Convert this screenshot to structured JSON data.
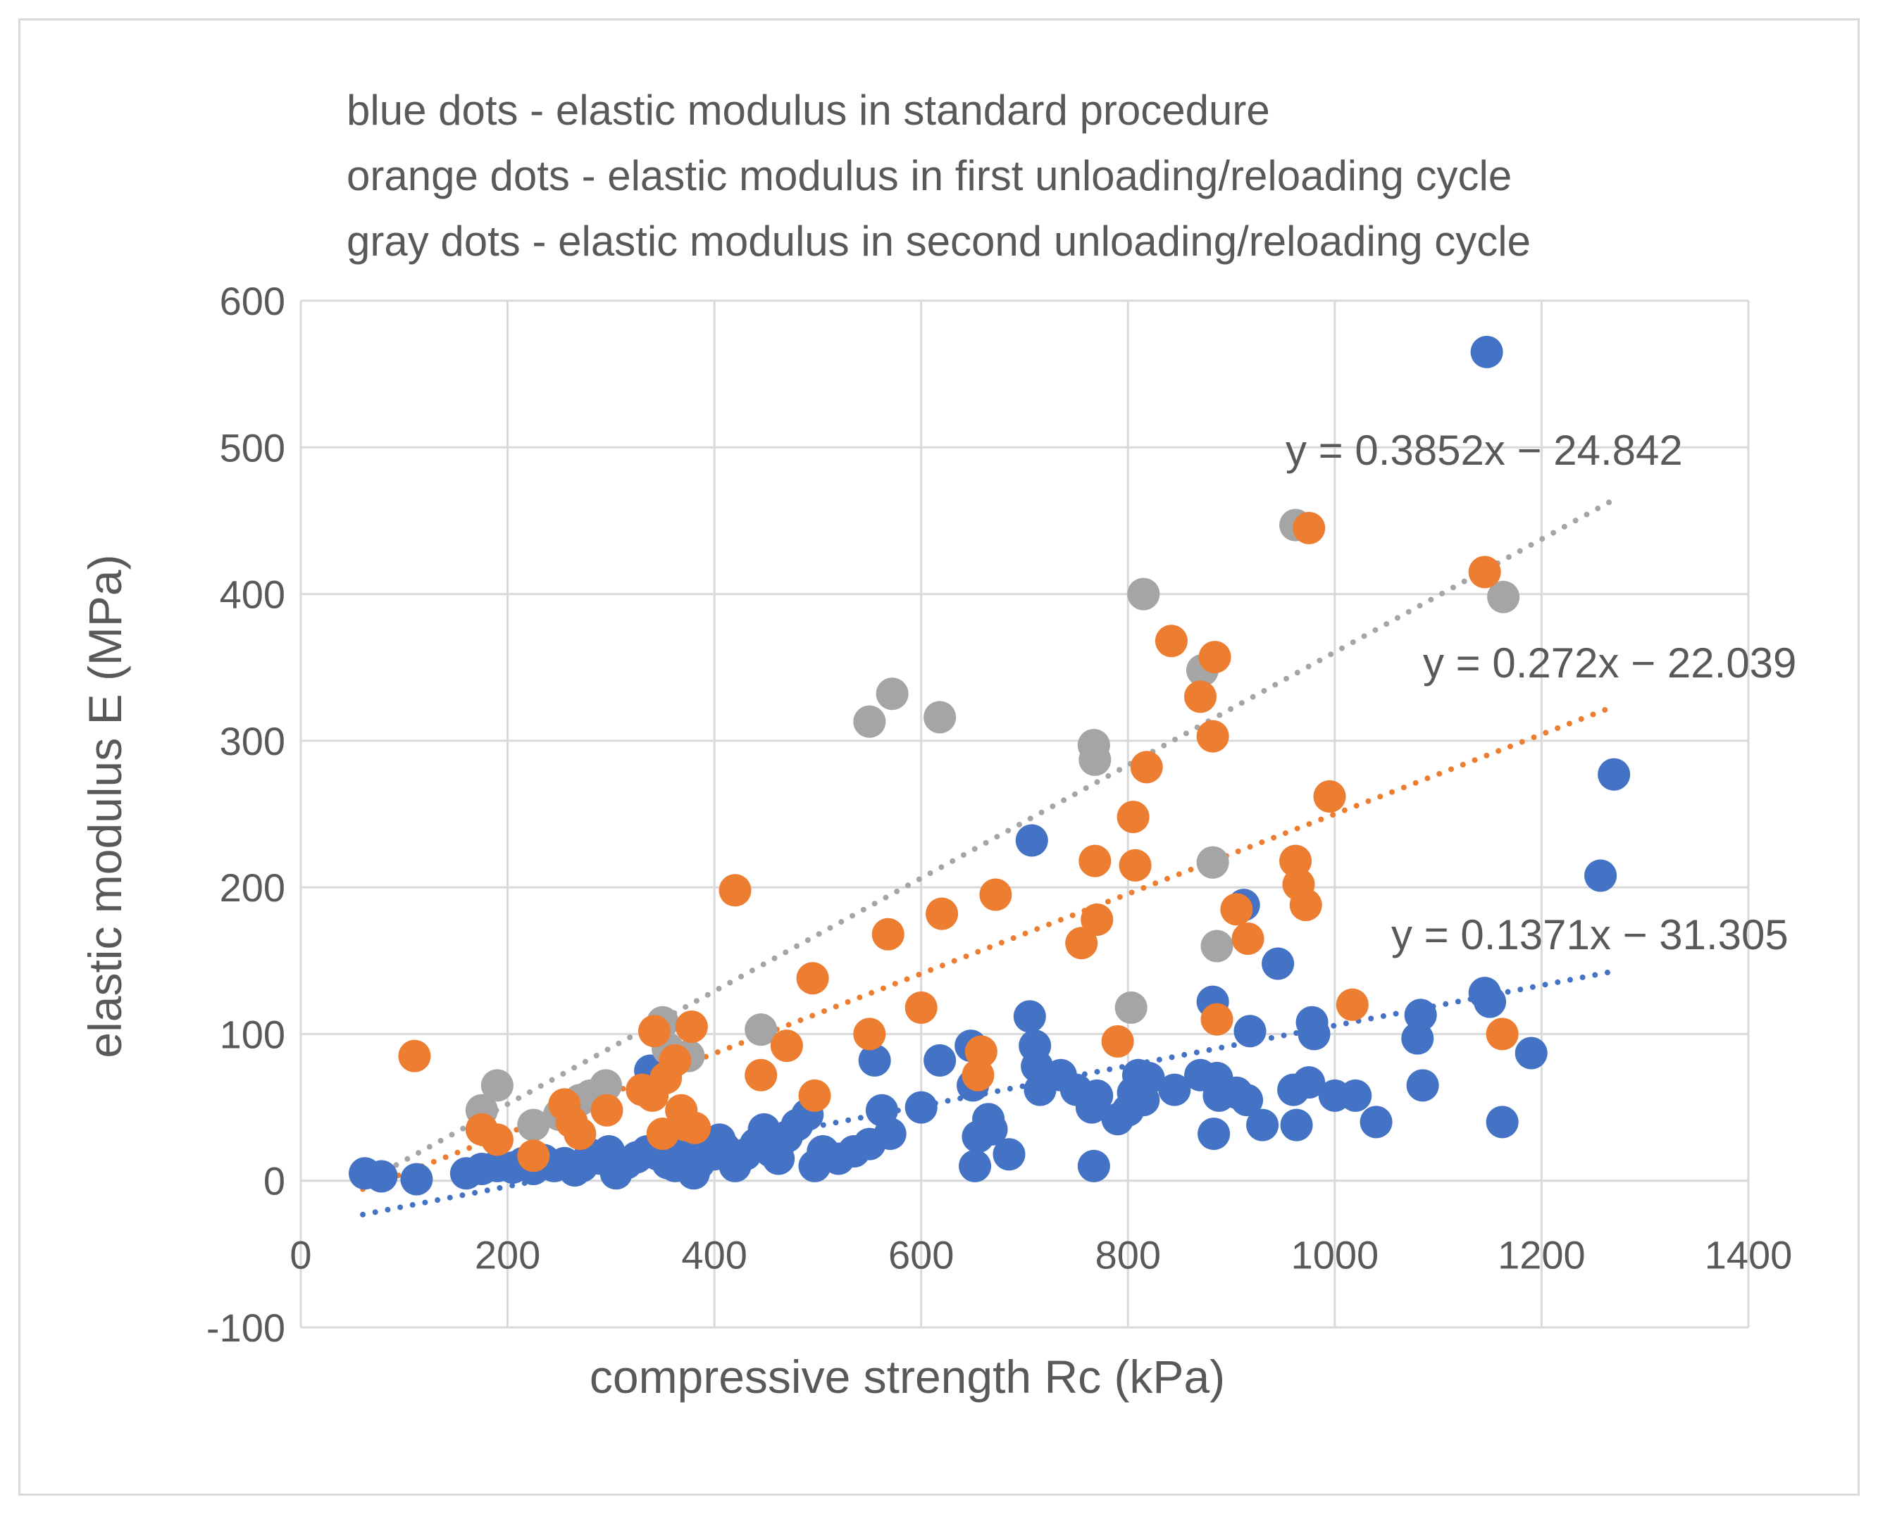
{
  "chart_data": {
    "type": "scatter",
    "annotations": [
      "blue dots - elastic modulus in standard procedure",
      "orange dots - elastic modulus in first unloading/reloading cycle",
      "gray dots - elastic modulus in second unloading/reloading cycle"
    ],
    "xlabel": "compressive strength Rc (kPa)",
    "ylabel": "elastic modulus E (MPa)",
    "xlim": [
      0,
      1400
    ],
    "ylim": [
      -100,
      600
    ],
    "xticks": [
      "0",
      "200",
      "400",
      "600",
      "800",
      "1000",
      "1200",
      "1400"
    ],
    "yticks": [
      "-100",
      "0",
      "100",
      "200",
      "300",
      "400",
      "500",
      "600"
    ],
    "grid": true,
    "series": [
      {
        "name": "elastic modulus in standard procedure",
        "color": "#4472c4",
        "trendline": {
          "slope": 0.1371,
          "intercept": -31.305,
          "x_range": [
            60,
            1270
          ],
          "equation": "y = 0.1371x − 31.305"
        },
        "points": [
          [
            62,
            5
          ],
          [
            78,
            3
          ],
          [
            112,
            1
          ],
          [
            160,
            5
          ],
          [
            175,
            8
          ],
          [
            190,
            10
          ],
          [
            205,
            9
          ],
          [
            215,
            12
          ],
          [
            225,
            8
          ],
          [
            235,
            14
          ],
          [
            245,
            10
          ],
          [
            255,
            12
          ],
          [
            265,
            7
          ],
          [
            272,
            10
          ],
          [
            280,
            18
          ],
          [
            290,
            15
          ],
          [
            298,
            20
          ],
          [
            305,
            5
          ],
          [
            315,
            12
          ],
          [
            325,
            16
          ],
          [
            335,
            20
          ],
          [
            338,
            75
          ],
          [
            345,
            18
          ],
          [
            350,
            25
          ],
          [
            355,
            12
          ],
          [
            362,
            10
          ],
          [
            370,
            15
          ],
          [
            375,
            20
          ],
          [
            380,
            5
          ],
          [
            385,
            12
          ],
          [
            392,
            25
          ],
          [
            400,
            18
          ],
          [
            405,
            28
          ],
          [
            410,
            22
          ],
          [
            420,
            10
          ],
          [
            430,
            18
          ],
          [
            440,
            25
          ],
          [
            448,
            35
          ],
          [
            455,
            20
          ],
          [
            462,
            15
          ],
          [
            470,
            30
          ],
          [
            480,
            38
          ],
          [
            490,
            45
          ],
          [
            497,
            10
          ],
          [
            505,
            20
          ],
          [
            520,
            15
          ],
          [
            535,
            20
          ],
          [
            550,
            25
          ],
          [
            555,
            82
          ],
          [
            562,
            48
          ],
          [
            570,
            32
          ],
          [
            600,
            50
          ],
          [
            618,
            82
          ],
          [
            648,
            92
          ],
          [
            650,
            65
          ],
          [
            652,
            10
          ],
          [
            655,
            30
          ],
          [
            665,
            42
          ],
          [
            668,
            35
          ],
          [
            685,
            18
          ],
          [
            705,
            112
          ],
          [
            707,
            232
          ],
          [
            710,
            92
          ],
          [
            712,
            78
          ],
          [
            715,
            62
          ],
          [
            735,
            72
          ],
          [
            750,
            62
          ],
          [
            765,
            50
          ],
          [
            767,
            10
          ],
          [
            770,
            58
          ],
          [
            790,
            42
          ],
          [
            800,
            48
          ],
          [
            805,
            60
          ],
          [
            810,
            72
          ],
          [
            815,
            55
          ],
          [
            820,
            70
          ],
          [
            845,
            62
          ],
          [
            870,
            72
          ],
          [
            882,
            122
          ],
          [
            883,
            32
          ],
          [
            886,
            70
          ],
          [
            888,
            58
          ],
          [
            905,
            60
          ],
          [
            912,
            188
          ],
          [
            915,
            55
          ],
          [
            918,
            102
          ],
          [
            930,
            38
          ],
          [
            945,
            148
          ],
          [
            960,
            62
          ],
          [
            963,
            38
          ],
          [
            975,
            67
          ],
          [
            978,
            108
          ],
          [
            980,
            100
          ],
          [
            1000,
            58
          ],
          [
            1020,
            58
          ],
          [
            1040,
            40
          ],
          [
            1080,
            97
          ],
          [
            1083,
            113
          ],
          [
            1085,
            65
          ],
          [
            1145,
            128
          ],
          [
            1147,
            565
          ],
          [
            1150,
            122
          ],
          [
            1162,
            40
          ],
          [
            1190,
            87
          ],
          [
            1257,
            208
          ],
          [
            1270,
            277
          ]
        ]
      },
      {
        "name": "elastic modulus in first unloading/reloading cycle",
        "color": "#ed7d31",
        "trendline": {
          "slope": 0.272,
          "intercept": -22.039,
          "x_range": [
            60,
            1270
          ],
          "equation": "y = 0.272x − 22.039"
        },
        "points": [
          [
            110,
            85
          ],
          [
            175,
            35
          ],
          [
            190,
            28
          ],
          [
            225,
            17
          ],
          [
            255,
            52
          ],
          [
            262,
            40
          ],
          [
            270,
            32
          ],
          [
            296,
            48
          ],
          [
            330,
            62
          ],
          [
            340,
            58
          ],
          [
            342,
            102
          ],
          [
            350,
            32
          ],
          [
            353,
            70
          ],
          [
            362,
            82
          ],
          [
            368,
            48
          ],
          [
            372,
            38
          ],
          [
            378,
            105
          ],
          [
            381,
            36
          ],
          [
            420,
            198
          ],
          [
            445,
            72
          ],
          [
            470,
            92
          ],
          [
            495,
            138
          ],
          [
            497,
            58
          ],
          [
            550,
            100
          ],
          [
            568,
            168
          ],
          [
            600,
            118
          ],
          [
            620,
            182
          ],
          [
            655,
            72
          ],
          [
            658,
            88
          ],
          [
            672,
            195
          ],
          [
            755,
            162
          ],
          [
            768,
            218
          ],
          [
            770,
            178
          ],
          [
            790,
            95
          ],
          [
            805,
            248
          ],
          [
            807,
            215
          ],
          [
            818,
            282
          ],
          [
            842,
            368
          ],
          [
            870,
            330
          ],
          [
            882,
            303
          ],
          [
            884,
            357
          ],
          [
            886,
            110
          ],
          [
            905,
            185
          ],
          [
            916,
            165
          ],
          [
            962,
            218
          ],
          [
            965,
            202
          ],
          [
            972,
            188
          ],
          [
            975,
            445
          ],
          [
            995,
            262
          ],
          [
            1017,
            120
          ],
          [
            1145,
            415
          ],
          [
            1162,
            100
          ]
        ]
      },
      {
        "name": "elastic modulus in second unloading/reloading cycle",
        "color": "#a5a5a5",
        "trendline": {
          "slope": 0.3852,
          "intercept": -24.842,
          "x_range": [
            60,
            1270
          ],
          "equation": "y = 0.3852x − 24.842"
        },
        "points": [
          [
            175,
            48
          ],
          [
            190,
            65
          ],
          [
            225,
            38
          ],
          [
            250,
            45
          ],
          [
            270,
            55
          ],
          [
            280,
            58
          ],
          [
            295,
            65
          ],
          [
            350,
            108
          ],
          [
            355,
            90
          ],
          [
            375,
            85
          ],
          [
            445,
            103
          ],
          [
            550,
            313
          ],
          [
            572,
            332
          ],
          [
            618,
            316
          ],
          [
            767,
            297
          ],
          [
            768,
            287
          ],
          [
            803,
            118
          ],
          [
            815,
            400
          ],
          [
            872,
            348
          ],
          [
            882,
            217
          ],
          [
            886,
            160
          ],
          [
            962,
            447
          ],
          [
            1163,
            398
          ]
        ]
      }
    ]
  }
}
